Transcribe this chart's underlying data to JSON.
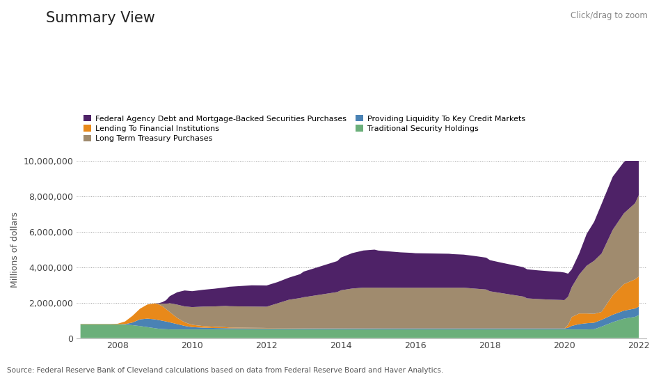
{
  "title": "Summary View",
  "subtitle": "Click/drag to zoom",
  "ylabel": "Millions of dollars",
  "source": "Source: Federal Reserve Bank of Cleveland calculations based on data from Federal Reserve Board and Haver Analytics.",
  "legend": [
    {
      "label": "Federal Agency Debt and Mortgage-Backed Securities Purchases",
      "color": "#4E2267"
    },
    {
      "label": "Long Term Treasury Purchases",
      "color": "#A08B6E"
    },
    {
      "label": "Traditional Security Holdings",
      "color": "#6BAF7A"
    },
    {
      "label": "Lending To Financial Institutions",
      "color": "#E8891A"
    },
    {
      "label": "Providing Liquidity To Key Credit Markets",
      "color": "#4A82B4"
    }
  ],
  "ylim": [
    0,
    10000000
  ],
  "yticks": [
    0,
    2000000,
    4000000,
    6000000,
    8000000,
    10000000
  ],
  "background_color": "#FFFFFF",
  "xlim": [
    2006.9,
    2022.2
  ],
  "xticks": [
    2008,
    2010,
    2012,
    2014,
    2016,
    2018,
    2020,
    2022
  ],
  "years": [
    2007.0,
    2007.2,
    2007.4,
    2007.6,
    2007.8,
    2008.0,
    2008.2,
    2008.4,
    2008.6,
    2008.8,
    2009.0,
    2009.1,
    2009.2,
    2009.3,
    2009.4,
    2009.6,
    2009.8,
    2010.0,
    2010.3,
    2010.6,
    2010.9,
    2011.0,
    2011.3,
    2011.6,
    2011.9,
    2012.0,
    2012.3,
    2012.6,
    2012.9,
    2013.0,
    2013.3,
    2013.6,
    2013.9,
    2014.0,
    2014.3,
    2014.6,
    2014.9,
    2015.0,
    2015.3,
    2015.6,
    2015.9,
    2016.0,
    2016.3,
    2016.6,
    2016.9,
    2017.0,
    2017.3,
    2017.6,
    2017.9,
    2018.0,
    2018.3,
    2018.6,
    2018.9,
    2019.0,
    2019.3,
    2019.6,
    2019.9,
    2020.0,
    2020.1,
    2020.2,
    2020.4,
    2020.6,
    2020.8,
    2021.0,
    2021.3,
    2021.6,
    2021.9,
    2022.0
  ],
  "traditional_security": [
    780000,
    780000,
    780000,
    780000,
    780000,
    775000,
    760000,
    730000,
    680000,
    620000,
    560000,
    530000,
    510000,
    500000,
    490000,
    490000,
    490000,
    490000,
    490000,
    490000,
    490000,
    490000,
    490000,
    490000,
    490000,
    490000,
    490000,
    490000,
    490000,
    490000,
    490000,
    490000,
    490000,
    490000,
    490000,
    490000,
    490000,
    490000,
    490000,
    490000,
    490000,
    490000,
    490000,
    490000,
    490000,
    490000,
    490000,
    490000,
    490000,
    490000,
    490000,
    490000,
    490000,
    490000,
    490000,
    490000,
    490000,
    490000,
    490000,
    490000,
    490000,
    490000,
    500000,
    650000,
    900000,
    1100000,
    1200000,
    1300000
  ],
  "liquidity_credit": [
    5000,
    5000,
    5000,
    5000,
    5000,
    5000,
    30000,
    150000,
    380000,
    480000,
    500000,
    490000,
    470000,
    440000,
    400000,
    300000,
    200000,
    130000,
    100000,
    80000,
    70000,
    65000,
    62000,
    60000,
    58000,
    57000,
    56000,
    55000,
    54000,
    53000,
    52000,
    51000,
    50000,
    50000,
    50000,
    50000,
    50000,
    50000,
    50000,
    50000,
    50000,
    50000,
    50000,
    50000,
    50000,
    50000,
    50000,
    50000,
    50000,
    50000,
    50000,
    50000,
    50000,
    50000,
    50000,
    50000,
    50000,
    50000,
    100000,
    200000,
    300000,
    350000,
    370000,
    380000,
    420000,
    450000,
    470000,
    480000
  ],
  "lending_financial": [
    15000,
    15000,
    15000,
    15000,
    15000,
    30000,
    150000,
    380000,
    600000,
    800000,
    900000,
    880000,
    820000,
    700000,
    580000,
    350000,
    200000,
    130000,
    90000,
    70000,
    55000,
    45000,
    38000,
    32000,
    28000,
    25000,
    22000,
    20000,
    18000,
    16000,
    14000,
    13000,
    12000,
    11000,
    10000,
    9000,
    8000,
    7000,
    6000,
    5000,
    5000,
    5000,
    5000,
    5000,
    5000,
    5000,
    5000,
    5000,
    5000,
    5000,
    5000,
    5000,
    5000,
    5000,
    5000,
    5000,
    5000,
    5000,
    150000,
    500000,
    600000,
    550000,
    500000,
    450000,
    1100000,
    1500000,
    1650000,
    1700000
  ],
  "long_term_treasury": [
    0,
    0,
    0,
    0,
    0,
    0,
    0,
    0,
    0,
    0,
    0,
    50000,
    150000,
    300000,
    500000,
    750000,
    900000,
    1000000,
    1100000,
    1150000,
    1200000,
    1200000,
    1200000,
    1200000,
    1200000,
    1200000,
    1400000,
    1600000,
    1700000,
    1750000,
    1850000,
    1950000,
    2050000,
    2150000,
    2250000,
    2300000,
    2300000,
    2300000,
    2300000,
    2300000,
    2300000,
    2300000,
    2300000,
    2300000,
    2300000,
    2300000,
    2300000,
    2250000,
    2200000,
    2100000,
    2000000,
    1900000,
    1800000,
    1700000,
    1660000,
    1630000,
    1610000,
    1600000,
    1600000,
    1700000,
    2200000,
    2700000,
    3000000,
    3300000,
    3700000,
    4000000,
    4300000,
    4600000
  ],
  "federal_agency": [
    0,
    0,
    0,
    0,
    0,
    0,
    0,
    0,
    0,
    0,
    0,
    20000,
    80000,
    200000,
    400000,
    700000,
    900000,
    900000,
    950000,
    1000000,
    1050000,
    1100000,
    1150000,
    1200000,
    1200000,
    1200000,
    1200000,
    1250000,
    1350000,
    1450000,
    1550000,
    1650000,
    1750000,
    1850000,
    2000000,
    2100000,
    2150000,
    2100000,
    2050000,
    2000000,
    1970000,
    1950000,
    1940000,
    1930000,
    1920000,
    1900000,
    1870000,
    1840000,
    1800000,
    1760000,
    1720000,
    1690000,
    1660000,
    1640000,
    1620000,
    1600000,
    1580000,
    1560000,
    1300000,
    1000000,
    1200000,
    1800000,
    2200000,
    2800000,
    3000000,
    2900000,
    2800000,
    2650000
  ]
}
